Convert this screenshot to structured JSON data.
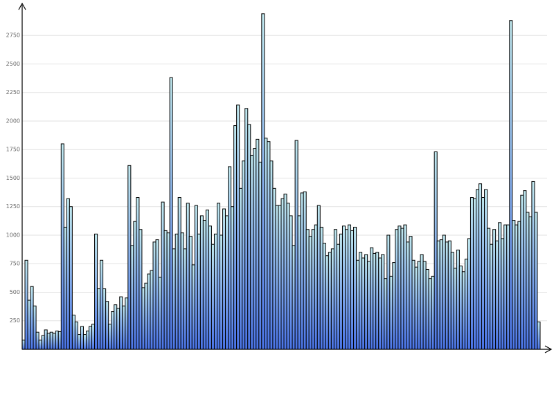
{
  "chart_data": {
    "type": "bar",
    "categories": [
      null,
      null,
      null,
      null,
      null,
      null,
      null,
      null,
      null,
      null,
      null,
      null,
      null,
      null,
      null,
      null,
      null,
      null,
      null,
      null,
      null,
      null,
      null,
      null,
      null,
      null,
      null,
      null,
      null,
      null,
      null,
      null,
      null,
      null,
      null,
      null,
      null,
      null,
      null,
      null,
      null,
      null,
      null,
      null,
      null,
      null,
      null,
      null,
      null,
      null,
      null,
      null,
      null,
      null,
      null,
      null,
      null,
      null,
      null,
      null,
      null,
      null,
      null,
      null,
      null,
      null,
      null,
      null,
      null,
      null,
      null,
      null,
      null,
      null,
      null,
      null,
      null,
      null,
      null,
      null,
      null,
      null,
      null,
      null,
      null,
      null,
      null,
      null,
      null,
      null,
      null,
      null,
      null,
      null,
      null,
      null,
      null,
      null,
      null,
      null,
      null,
      null,
      null,
      null,
      null,
      null,
      null,
      null,
      null,
      null,
      null,
      null,
      null,
      null,
      null,
      null,
      null,
      null,
      null,
      null,
      null,
      null,
      null,
      null,
      null,
      null,
      null,
      null,
      null,
      null,
      null,
      null,
      null,
      null,
      null,
      null,
      null,
      null,
      null,
      null,
      null,
      null,
      null,
      null,
      null,
      null,
      null,
      null,
      null,
      null,
      null,
      null,
      null,
      null,
      null,
      null,
      null,
      null,
      null,
      null,
      null,
      null,
      null,
      null,
      null,
      null,
      null,
      null,
      null,
      null,
      null,
      null,
      null,
      null,
      null,
      null,
      null,
      null,
      null,
      null,
      null,
      null,
      null,
      null,
      null,
      null
    ],
    "values": [
      80,
      780,
      430,
      550,
      380,
      150,
      80,
      120,
      170,
      140,
      150,
      140,
      160,
      155,
      1800,
      1070,
      1320,
      1250,
      300,
      240,
      130,
      200,
      130,
      160,
      200,
      220,
      1010,
      530,
      780,
      530,
      420,
      220,
      330,
      390,
      360,
      460,
      380,
      450,
      1610,
      910,
      1120,
      1330,
      1050,
      540,
      580,
      660,
      690,
      940,
      960,
      630,
      1290,
      1040,
      1020,
      2380,
      880,
      1010,
      1330,
      1020,
      880,
      1280,
      990,
      740,
      1260,
      1010,
      1170,
      1130,
      1220,
      1080,
      920,
      1010,
      1280,
      1000,
      1230,
      1170,
      1600,
      1250,
      1960,
      2140,
      1410,
      1650,
      2110,
      1970,
      1700,
      1760,
      1840,
      1640,
      2940,
      1850,
      1820,
      1650,
      1410,
      1260,
      1260,
      1320,
      1360,
      1280,
      1170,
      910,
      1830,
      1170,
      1370,
      1380,
      1050,
      990,
      1050,
      1090,
      1260,
      1070,
      930,
      820,
      850,
      880,
      1050,
      920,
      1010,
      1080,
      1050,
      1090,
      1040,
      1070,
      780,
      850,
      800,
      830,
      770,
      890,
      840,
      850,
      800,
      830,
      620,
      1000,
      640,
      760,
      1050,
      1080,
      1060,
      1090,
      940,
      990,
      780,
      720,
      770,
      830,
      770,
      700,
      620,
      640,
      1730,
      950,
      960,
      1000,
      940,
      950,
      850,
      710,
      870,
      730,
      680,
      790,
      970,
      1330,
      1320,
      1400,
      1450,
      1330,
      1400,
      1060,
      920,
      1050,
      950,
      1110,
      970,
      1090,
      1090,
      2880,
      1130,
      1090,
      1120,
      1350,
      1390,
      1200,
      1160,
      1470,
      1200,
      240
    ],
    "gradient": [
      "#c2eaf0",
      "#4a74e8"
    ],
    "ylim": [
      0,
      3030
    ],
    "yticks": [
      250,
      500,
      750,
      1000,
      1250,
      1500,
      1750,
      2000,
      2250,
      2500,
      2750
    ],
    "grid": true
  }
}
